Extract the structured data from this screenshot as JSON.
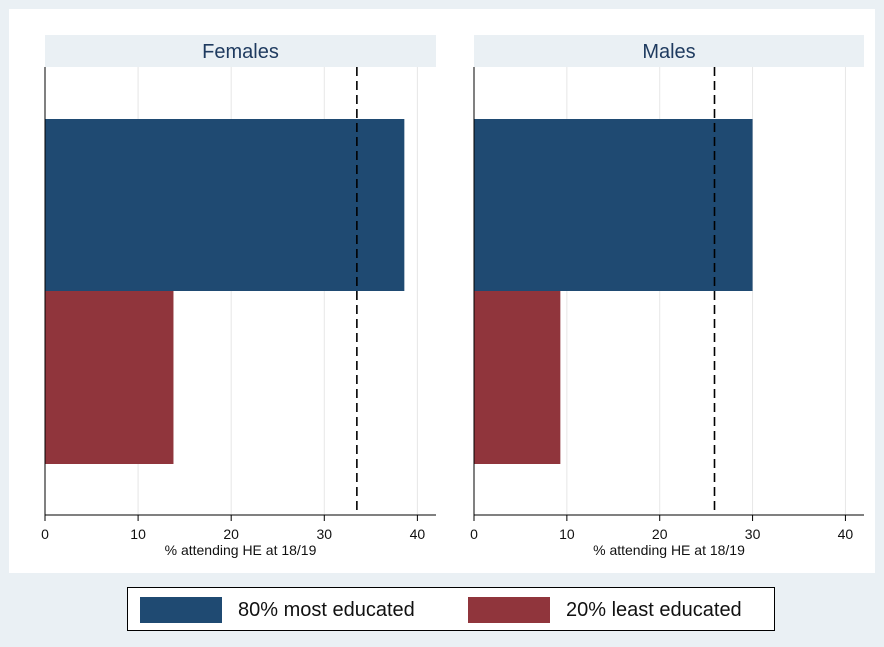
{
  "colors": {
    "background": "#eaf0f4",
    "panel_background": "#ffffff",
    "grid": "#e6e6e6",
    "reference_line": "#000000"
  },
  "chart_data": [
    {
      "type": "bar",
      "orientation": "horizontal",
      "title": "Females",
      "xlabel": "% attending HE at 18/19",
      "xlim": [
        0,
        42
      ],
      "xticks": [
        0,
        10,
        20,
        30,
        40
      ],
      "grid": true,
      "series": [
        {
          "name": "80% most educated",
          "values": [
            38.6
          ],
          "color": "#1f4a72"
        },
        {
          "name": "20% least educated",
          "values": [
            13.8
          ],
          "color": "#90353c"
        }
      ],
      "reference_line": {
        "style": "dashed",
        "x": 33.5
      }
    },
    {
      "type": "bar",
      "orientation": "horizontal",
      "title": "Males",
      "xlabel": "% attending HE at 18/19",
      "xlim": [
        0,
        42
      ],
      "xticks": [
        0,
        10,
        20,
        30,
        40
      ],
      "grid": true,
      "series": [
        {
          "name": "80% most educated",
          "values": [
            30.0
          ],
          "color": "#1f4a72"
        },
        {
          "name": "20% least educated",
          "values": [
            9.3
          ],
          "color": "#90353c"
        }
      ],
      "reference_line": {
        "style": "dashed",
        "x": 25.9
      }
    }
  ],
  "legend": {
    "position": "bottom",
    "items": [
      {
        "label": "80% most educated",
        "color": "#1f4a72"
      },
      {
        "label": "20% least educated",
        "color": "#90353c"
      }
    ]
  }
}
